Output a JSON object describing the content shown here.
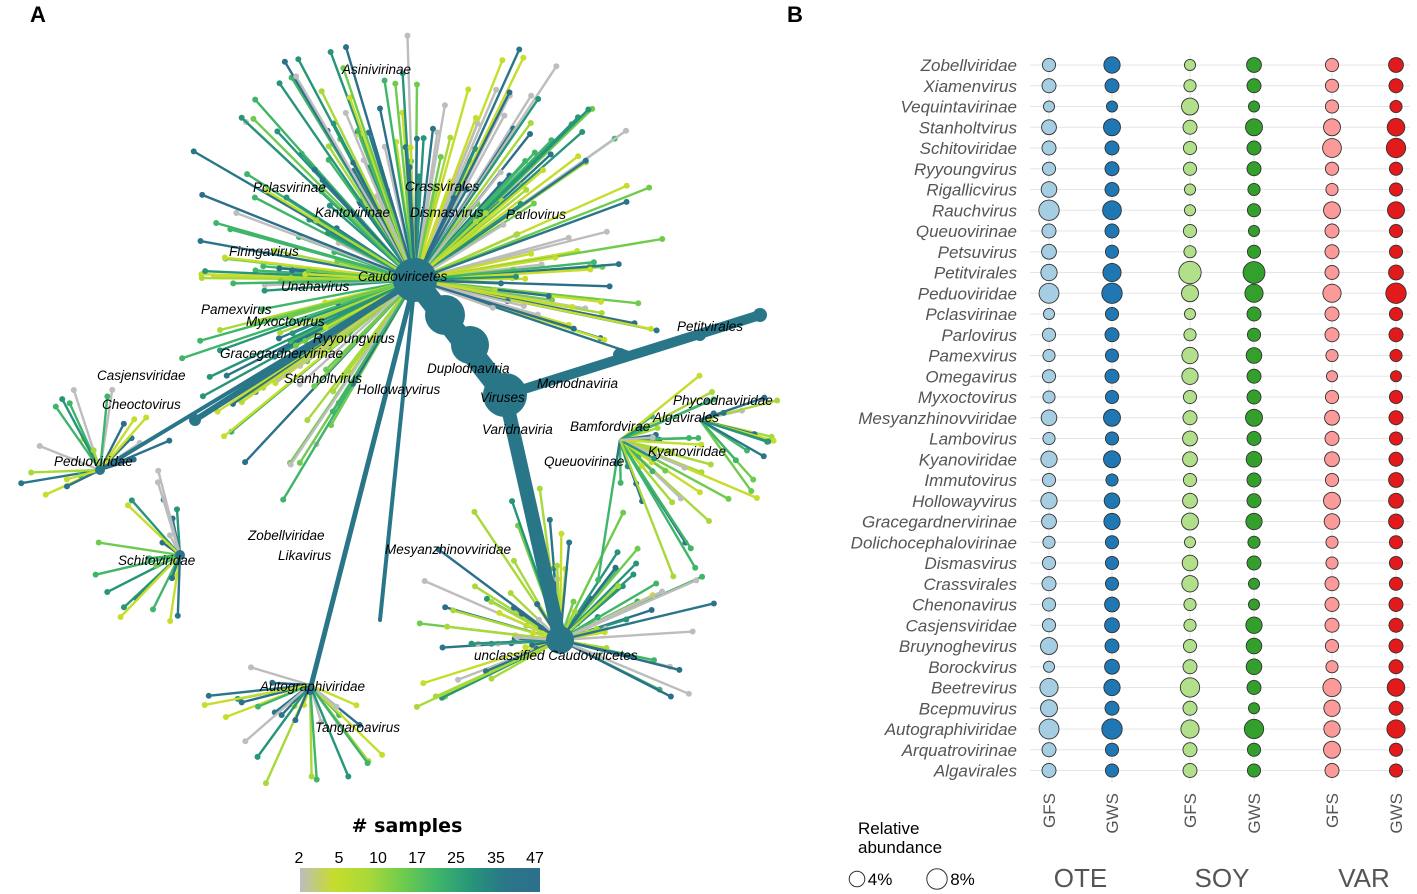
{
  "panels": {
    "a_letter": "A",
    "b_letter": "B"
  },
  "tree": {
    "labels": [
      "Asinivirinae",
      "Crassvirales",
      "Pclasvirinae",
      "Kantovirinae",
      "Dismasvirus",
      "Parlovirus",
      "Firingavirus",
      "Caudoviricetes",
      "Unahavirus",
      "Pamexvirus",
      "Myxoctovirus",
      "Ryyoungvirus",
      "Gracegardnervirinae",
      "Duplodnaviria",
      "Casjensviridae",
      "Stanholtvirus",
      "Hollowayvirus",
      "Monodnaviria",
      "Viruses",
      "Cheoctovirus",
      "Phycodnaviridae",
      "Algavirales",
      "Varidnaviria",
      "Bamfordvirae",
      "Petitvirales",
      "Peduoviridae",
      "Queuovirinae",
      "Kyanoviridae",
      "Schitoviridae",
      "Zobellviridae",
      "Likavirus",
      "Mesyanzhinovviridae",
      "unclassified Caudoviricetes",
      "Autographiviridae",
      "Tangaroavirus"
    ],
    "colorbar": {
      "title": "# samples",
      "ticks": [
        "2",
        "5",
        "10",
        "17",
        "25",
        "35",
        "47"
      ],
      "colors": [
        "#bdbdbd",
        "#c6dd2c",
        "#a9d83a",
        "#6fcb4d",
        "#3fb56a",
        "#26957a",
        "#2a7689",
        "#2c6f8a"
      ]
    }
  },
  "chart_data": {
    "type": "bubble",
    "title": "",
    "x_groups": [
      {
        "name": "OTE",
        "columns": [
          "GFS",
          "GWS"
        ],
        "colors": [
          "#a6cee3",
          "#1f78b4"
        ]
      },
      {
        "name": "SOY",
        "columns": [
          "GFS",
          "GWS"
        ],
        "colors": [
          "#b2df8a",
          "#33a02c"
        ]
      },
      {
        "name": "VAR",
        "columns": [
          "GFS",
          "GWS"
        ],
        "colors": [
          "#fb9a99",
          "#e31a1c"
        ]
      }
    ],
    "rows": [
      "Zobellviridae",
      "Xiamenvirus",
      "Vequintavirinae",
      "Stanholtvirus",
      "Schitoviridae",
      "Ryyoungvirus",
      "Rigallicvirus",
      "Rauchvirus",
      "Queuovirinae",
      "Petsuvirus",
      "Petitvirales",
      "Peduoviridae",
      "Pclasvirinae",
      "Parlovirus",
      "Pamexvirus",
      "Omegavirus",
      "Myxoctovirus",
      "Mesyanzhinovviridae",
      "Lambovirus",
      "Kyanoviridae",
      "Immutovirus",
      "Hollowayvirus",
      "Gracegardnervirinae",
      "Dolichocephalovirinae",
      "Dismasvirus",
      "Crassvirales",
      "Chenonavirus",
      "Casjensviridae",
      "Bruynoghevirus",
      "Borockvirus",
      "Beetrevirus",
      "Bcepmuvirus",
      "Autographiviridae",
      "Arquatrovirinae",
      "Algavirales"
    ],
    "values_unit": "relative abundance (%)",
    "values": [
      [
        2.5,
        4.5,
        1.5,
        3.5,
        2.5,
        3.5
      ],
      [
        3.0,
        3.0,
        2.0,
        3.0,
        2.5,
        3.0
      ],
      [
        1.5,
        1.5,
        5.0,
        1.5,
        2.5,
        2.0
      ],
      [
        3.5,
        5.0,
        3.0,
        5.0,
        5.0,
        5.5
      ],
      [
        3.0,
        3.0,
        2.5,
        3.0,
        6.5,
        7.0
      ],
      [
        2.5,
        3.0,
        2.5,
        3.0,
        2.5,
        2.5
      ],
      [
        4.0,
        3.0,
        1.5,
        2.0,
        2.0,
        2.5
      ],
      [
        8.0,
        6.5,
        1.5,
        2.5,
        5.0,
        5.0
      ],
      [
        3.0,
        3.0,
        2.5,
        1.5,
        3.0,
        2.5
      ],
      [
        3.5,
        2.5,
        2.0,
        2.5,
        3.0,
        2.5
      ],
      [
        4.5,
        6.0,
        10.0,
        9.5,
        3.0,
        3.5
      ],
      [
        7.5,
        8.0,
        5.0,
        6.0,
        6.0,
        8.0
      ],
      [
        1.5,
        2.5,
        1.5,
        3.0,
        3.0,
        2.5
      ],
      [
        2.5,
        3.0,
        2.0,
        2.5,
        3.0,
        3.0
      ],
      [
        2.0,
        2.5,
        4.5,
        4.0,
        2.0,
        2.0
      ],
      [
        2.5,
        3.0,
        4.5,
        3.0,
        1.5,
        1.5
      ],
      [
        2.0,
        2.5,
        2.5,
        3.0,
        2.5,
        2.5
      ],
      [
        4.0,
        5.0,
        3.0,
        5.0,
        3.5,
        3.0
      ],
      [
        2.0,
        2.5,
        3.5,
        3.0,
        3.0,
        2.5
      ],
      [
        4.5,
        5.0,
        3.5,
        4.0,
        3.5,
        3.0
      ],
      [
        2.5,
        2.0,
        2.5,
        3.0,
        2.5,
        3.5
      ],
      [
        4.5,
        4.0,
        3.5,
        3.0,
        5.0,
        3.5
      ],
      [
        3.5,
        4.5,
        5.0,
        4.5,
        4.0,
        3.5
      ],
      [
        2.0,
        2.5,
        1.5,
        2.0,
        2.0,
        2.5
      ],
      [
        2.5,
        2.5,
        4.0,
        3.0,
        2.0,
        2.5
      ],
      [
        3.0,
        2.5,
        4.5,
        1.5,
        3.0,
        2.5
      ],
      [
        2.5,
        3.5,
        2.0,
        1.5,
        3.0,
        3.0
      ],
      [
        2.5,
        3.5,
        2.0,
        4.5,
        3.0,
        3.0
      ],
      [
        5.0,
        3.0,
        2.5,
        4.0,
        2.5,
        3.0
      ],
      [
        1.5,
        3.5,
        3.0,
        4.0,
        2.0,
        3.0
      ],
      [
        6.0,
        4.5,
        7.0,
        3.0,
        6.0,
        5.5
      ],
      [
        5.0,
        3.0,
        3.0,
        1.5,
        4.5,
        3.0
      ],
      [
        7.5,
        8.0,
        6.0,
        7.0,
        4.5,
        6.0
      ],
      [
        3.0,
        2.5,
        3.0,
        2.5,
        5.0,
        2.5
      ],
      [
        3.0,
        2.5,
        3.0,
        2.5,
        3.0,
        2.5
      ]
    ],
    "size_legend": {
      "title_lines": [
        "Relative",
        "abundance"
      ],
      "entries": [
        {
          "label": "4%",
          "value": 4
        },
        {
          "label": "8%",
          "value": 8
        }
      ]
    }
  }
}
